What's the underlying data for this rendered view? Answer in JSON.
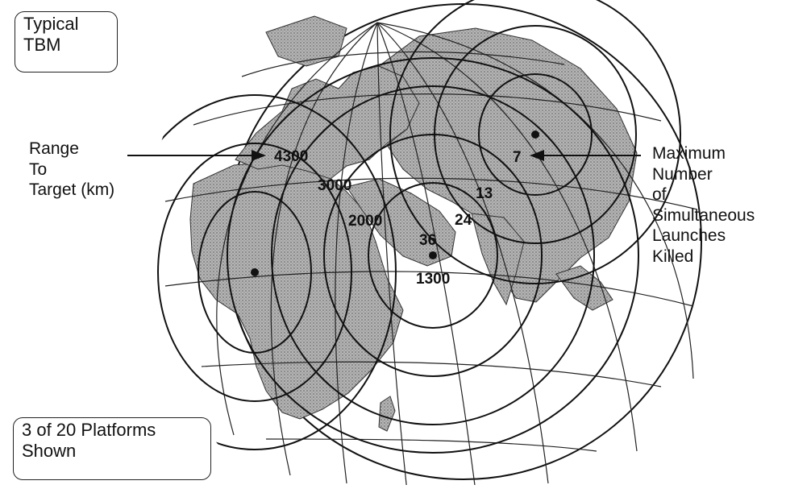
{
  "title_box": {
    "lines": [
      "Typical",
      "TBM"
    ]
  },
  "range_label": {
    "lines": [
      "Range",
      "To",
      "Target (km)"
    ]
  },
  "kills_label": {
    "lines": [
      "Maximum",
      "Number",
      "of",
      "Simultaneous",
      "Launches",
      "Killed"
    ]
  },
  "platforms_box": {
    "lines": [
      "3 of 20 Platforms",
      "Shown"
    ]
  },
  "range_values": [
    "4300",
    "3000",
    "2000",
    "1300"
  ],
  "kill_counts": [
    "7",
    "13",
    "24",
    "36"
  ],
  "colors": {
    "ink": "#111111",
    "land": "#9a9a9a",
    "ocean": "#ffffff"
  }
}
